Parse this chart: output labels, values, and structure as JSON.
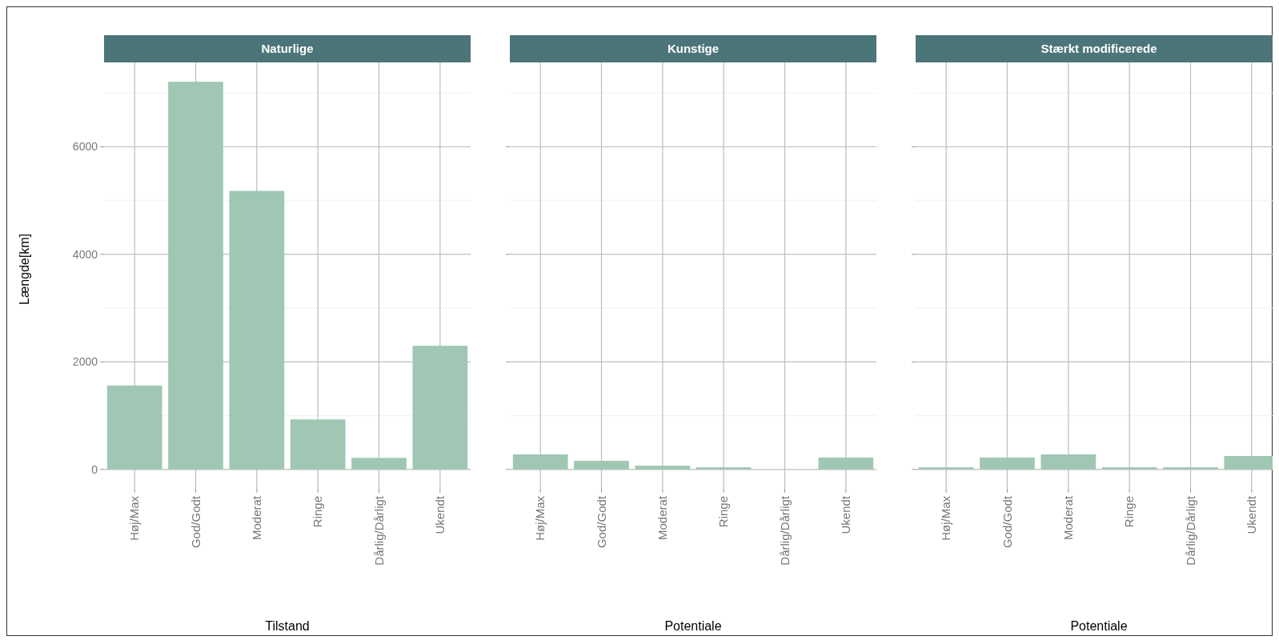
{
  "chart_data": [
    {
      "type": "bar",
      "title": "Naturlige",
      "xlabel": "Tilstand",
      "ylabel": "Længde[km]",
      "categories": [
        "Høj/Max",
        "God/Godt",
        "Moderat",
        "Ringe",
        "Dårlig/Dårligt",
        "Ukendt"
      ],
      "values": [
        1560,
        7210,
        5180,
        930,
        215,
        2300
      ],
      "color": "#9fc7b4",
      "ylim": [
        -360,
        7570
      ],
      "yticks": [
        0,
        {
          "value": 1000,
          "label": null
        },
        2000,
        {
          "value": 3000,
          "label": null
        },
        4000,
        {
          "value": 5000,
          "label": null
        },
        6000,
        {
          "value": 7000,
          "label": null
        }
      ],
      "grid": true
    },
    {
      "type": "bar",
      "title": "Kunstige",
      "xlabel": "Potentiale",
      "categories": [
        "Høj/Max",
        "God/Godt",
        "Moderat",
        "Ringe",
        "Dårlig/Dårligt",
        "Ukendt"
      ],
      "values": [
        280,
        160,
        70,
        40,
        0,
        220
      ],
      "color": "#9fc7b4",
      "ylim": [
        -360,
        7570
      ],
      "yticks": [
        0,
        {
          "value": 1000,
          "label": null
        },
        2000,
        {
          "value": 3000,
          "label": null
        },
        4000,
        {
          "value": 5000,
          "label": null
        },
        6000,
        {
          "value": 7000,
          "label": null
        }
      ],
      "grid": true,
      "tick_labels": "x"
    },
    {
      "type": "bar",
      "title": "Stærkt modificerede",
      "xlabel": "Potentiale",
      "categories": [
        "Høj/Max",
        "God/Godt",
        "Moderat",
        "Ringe",
        "Dårlig/Dårligt",
        "Ukendt"
      ],
      "values": [
        40,
        220,
        280,
        40,
        40,
        250
      ],
      "color": "#9fc7b4",
      "ylim": [
        -360,
        7570
      ],
      "yticks": [
        0,
        {
          "value": 1000,
          "label": null
        },
        2000,
        {
          "value": 3000,
          "label": null
        },
        4000,
        {
          "value": 5000,
          "label": null
        },
        6000,
        {
          "value": 7000,
          "label": null
        }
      ],
      "grid": true,
      "tick_labels": "x"
    }
  ]
}
